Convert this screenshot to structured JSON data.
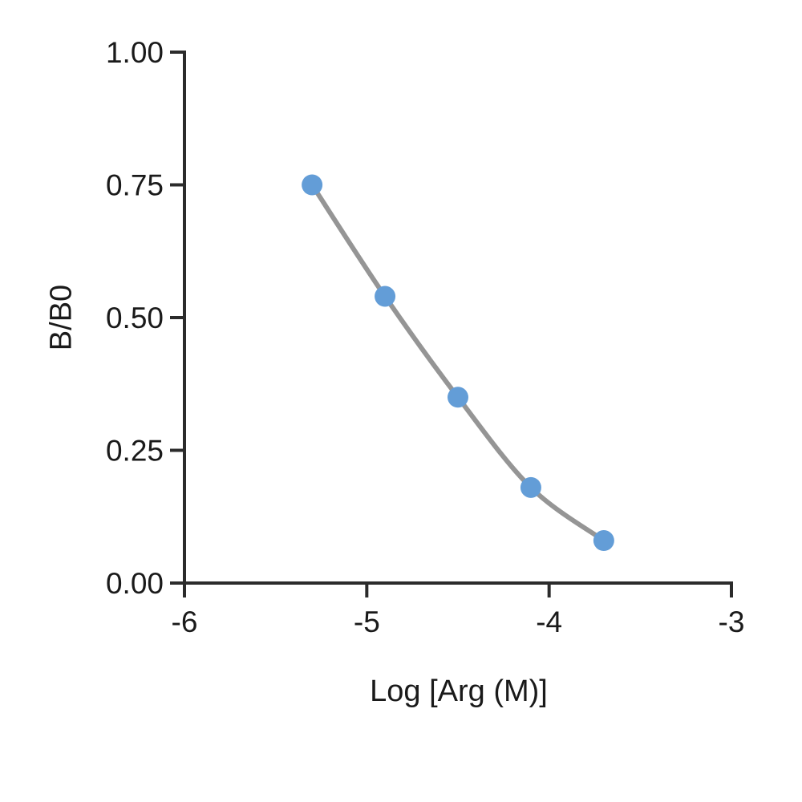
{
  "figure": {
    "background": "#ffffff"
  },
  "chart_data": {
    "type": "scatter",
    "title": "",
    "xlabel": "Log [Arg (M)]",
    "ylabel": "B/B0",
    "x": [
      -5.3,
      -4.9,
      -4.5,
      -4.1,
      -3.7
    ],
    "y": [
      0.75,
      0.54,
      0.35,
      0.18,
      0.08
    ],
    "xlim": [
      -6,
      -3
    ],
    "ylim": [
      0.0,
      1.0
    ],
    "x_ticks": [
      -6,
      -5,
      -4,
      -3
    ],
    "x_tick_labels": [
      "-6",
      "-5",
      "-4",
      "-3"
    ],
    "y_ticks": [
      0.0,
      0.25,
      0.5,
      0.75,
      1.0
    ],
    "y_tick_labels": [
      "0.00",
      "0.25",
      "0.50",
      "0.75",
      "1.00"
    ],
    "grid": false,
    "legend": null,
    "line_style": "smooth",
    "marker_color": "#639dd7",
    "line_color": "#959595",
    "axis_color": "#2b2b2b",
    "tick_label_color": "#1a1a1a"
  }
}
